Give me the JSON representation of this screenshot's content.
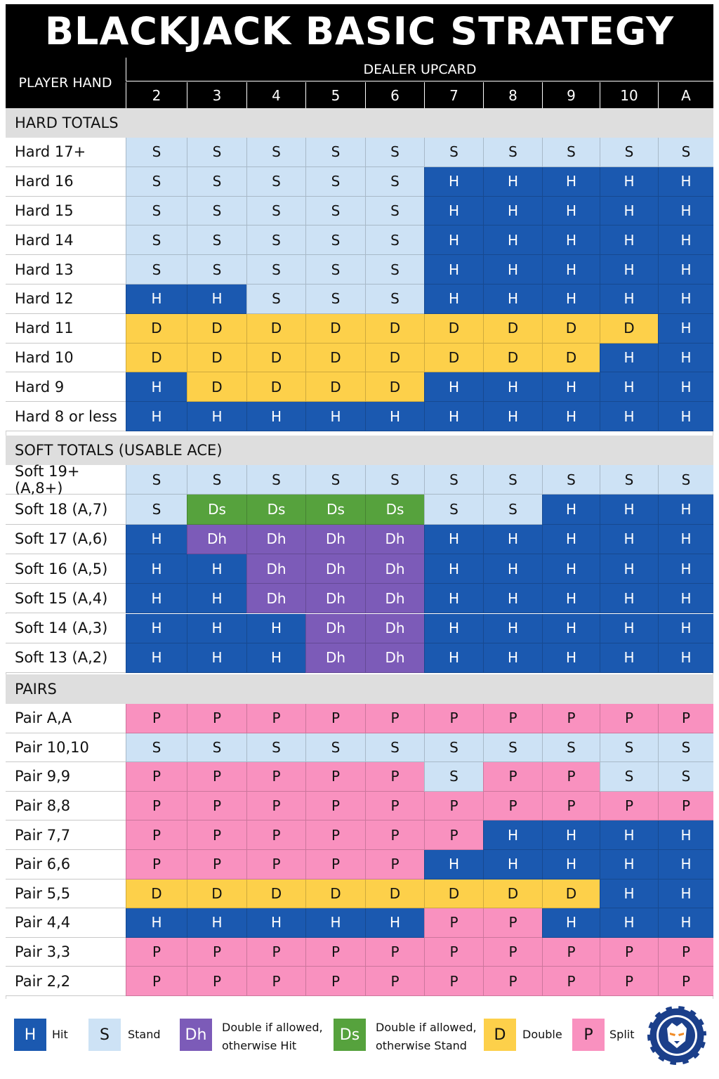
{
  "title": "BLACKJACK BASIC STRATEGY",
  "header": {
    "player_hand": "PLAYER HAND",
    "dealer_upcard": "DEALER UPCARD",
    "upcards": [
      "2",
      "3",
      "4",
      "5",
      "6",
      "7",
      "8",
      "9",
      "10",
      "A"
    ]
  },
  "colors": {
    "H": "#1b59b0",
    "S": "#cde2f5",
    "D": "#fdd04a",
    "Dh": "#7c5bb8",
    "Ds": "#56a23d",
    "P": "#f991bf",
    "header_bg": "#000000",
    "section_bg": "#dedede"
  },
  "sections": [
    {
      "title": "HARD TOTALS",
      "rows": [
        {
          "label": "Hard 17+",
          "cells": [
            "S",
            "S",
            "S",
            "S",
            "S",
            "S",
            "S",
            "S",
            "S",
            "S"
          ]
        },
        {
          "label": "Hard 16",
          "cells": [
            "S",
            "S",
            "S",
            "S",
            "S",
            "H",
            "H",
            "H",
            "H",
            "H"
          ]
        },
        {
          "label": "Hard 15",
          "cells": [
            "S",
            "S",
            "S",
            "S",
            "S",
            "H",
            "H",
            "H",
            "H",
            "H"
          ]
        },
        {
          "label": "Hard 14",
          "cells": [
            "S",
            "S",
            "S",
            "S",
            "S",
            "H",
            "H",
            "H",
            "H",
            "H"
          ]
        },
        {
          "label": "Hard 13",
          "cells": [
            "S",
            "S",
            "S",
            "S",
            "S",
            "H",
            "H",
            "H",
            "H",
            "H"
          ]
        },
        {
          "label": "Hard 12",
          "cells": [
            "H",
            "H",
            "S",
            "S",
            "S",
            "H",
            "H",
            "H",
            "H",
            "H"
          ]
        },
        {
          "label": "Hard 11",
          "cells": [
            "D",
            "D",
            "D",
            "D",
            "D",
            "D",
            "D",
            "D",
            "D",
            "H"
          ]
        },
        {
          "label": "Hard 10",
          "cells": [
            "D",
            "D",
            "D",
            "D",
            "D",
            "D",
            "D",
            "D",
            "H",
            "H"
          ]
        },
        {
          "label": "Hard 9",
          "cells": [
            "H",
            "D",
            "D",
            "D",
            "D",
            "H",
            "H",
            "H",
            "H",
            "H"
          ]
        },
        {
          "label": "Hard 8 or less",
          "cells": [
            "H",
            "H",
            "H",
            "H",
            "H",
            "H",
            "H",
            "H",
            "H",
            "H"
          ]
        }
      ]
    },
    {
      "title": "SOFT TOTALS (USABLE ACE)",
      "rows": [
        {
          "label": "Soft 19+ (A,8+)",
          "cells": [
            "S",
            "S",
            "S",
            "S",
            "S",
            "S",
            "S",
            "S",
            "S",
            "S"
          ]
        },
        {
          "label": "Soft 18 (A,7)",
          "cells": [
            "S",
            "Ds",
            "Ds",
            "Ds",
            "Ds",
            "S",
            "S",
            "H",
            "H",
            "H"
          ]
        },
        {
          "label": "Soft 17 (A,6)",
          "cells": [
            "H",
            "Dh",
            "Dh",
            "Dh",
            "Dh",
            "H",
            "H",
            "H",
            "H",
            "H"
          ]
        },
        {
          "label": "Soft 16 (A,5)",
          "cells": [
            "H",
            "H",
            "Dh",
            "Dh",
            "Dh",
            "H",
            "H",
            "H",
            "H",
            "H"
          ]
        },
        {
          "label": "Soft 15 (A,4)",
          "cells": [
            "H",
            "H",
            "Dh",
            "Dh",
            "Dh",
            "H",
            "H",
            "H",
            "H",
            "H"
          ]
        },
        {
          "label": "Soft 14 (A,3)",
          "cells": [
            "H",
            "H",
            "H",
            "Dh",
            "Dh",
            "H",
            "H",
            "H",
            "H",
            "H"
          ]
        },
        {
          "label": "Soft 13 (A,2)",
          "cells": [
            "H",
            "H",
            "H",
            "Dh",
            "Dh",
            "H",
            "H",
            "H",
            "H",
            "H"
          ]
        }
      ]
    },
    {
      "title": "PAIRS",
      "rows": [
        {
          "label": "Pair A,A",
          "cells": [
            "P",
            "P",
            "P",
            "P",
            "P",
            "P",
            "P",
            "P",
            "P",
            "P"
          ]
        },
        {
          "label": "Pair 10,10",
          "cells": [
            "S",
            "S",
            "S",
            "S",
            "S",
            "S",
            "S",
            "S",
            "S",
            "S"
          ]
        },
        {
          "label": "Pair 9,9",
          "cells": [
            "P",
            "P",
            "P",
            "P",
            "P",
            "S",
            "P",
            "P",
            "S",
            "S"
          ]
        },
        {
          "label": "Pair 8,8",
          "cells": [
            "P",
            "P",
            "P",
            "P",
            "P",
            "P",
            "P",
            "P",
            "P",
            "P"
          ]
        },
        {
          "label": "Pair 7,7",
          "cells": [
            "P",
            "P",
            "P",
            "P",
            "P",
            "P",
            "H",
            "H",
            "H",
            "H"
          ]
        },
        {
          "label": "Pair 6,6",
          "cells": [
            "P",
            "P",
            "P",
            "P",
            "P",
            "H",
            "H",
            "H",
            "H",
            "H"
          ]
        },
        {
          "label": "Pair 5,5",
          "cells": [
            "D",
            "D",
            "D",
            "D",
            "D",
            "D",
            "D",
            "D",
            "H",
            "H"
          ]
        },
        {
          "label": "Pair 4,4",
          "cells": [
            "H",
            "H",
            "H",
            "H",
            "H",
            "P",
            "P",
            "H",
            "H",
            "H"
          ]
        },
        {
          "label": "Pair 3,3",
          "cells": [
            "P",
            "P",
            "P",
            "P",
            "P",
            "P",
            "P",
            "P",
            "P",
            "P"
          ]
        },
        {
          "label": "Pair 2,2",
          "cells": [
            "P",
            "P",
            "P",
            "P",
            "P",
            "P",
            "P",
            "P",
            "P",
            "P"
          ]
        }
      ]
    }
  ],
  "legend": {
    "hit": {
      "code": "H",
      "text": "Hit"
    },
    "stand": {
      "code": "S",
      "text": "Stand"
    },
    "double_hit": {
      "code": "Dh",
      "line1": "Double if allowed,",
      "line2": "otherwise Hit"
    },
    "double_stand": {
      "code": "Ds",
      "line1": "Double if allowed,",
      "line2": "otherwise Stand"
    },
    "double": {
      "code": "D",
      "text": "Double"
    },
    "split": {
      "code": "P",
      "text": "Split"
    }
  },
  "logo_icon": "poker-chip-lion-icon"
}
